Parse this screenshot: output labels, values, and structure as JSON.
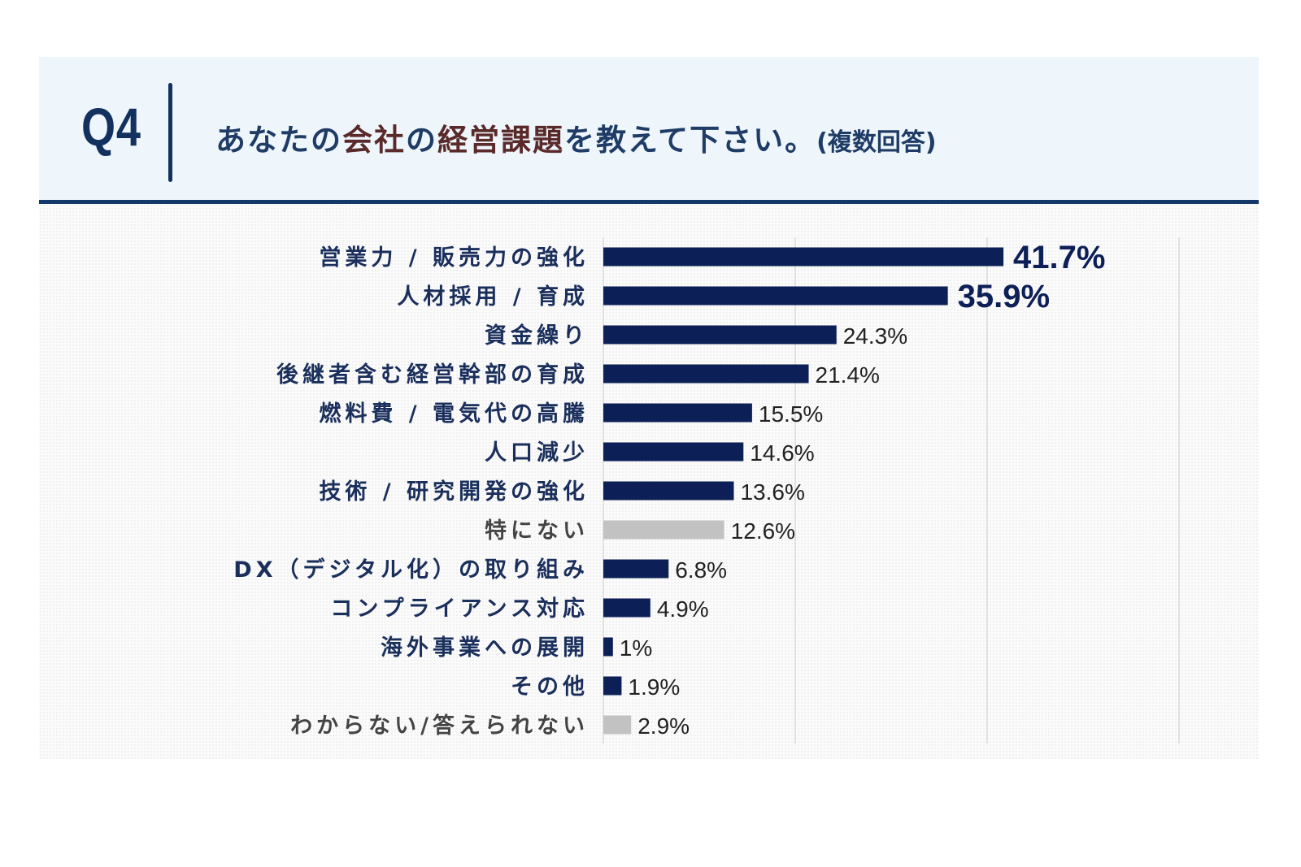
{
  "header": {
    "q_number": "Q4",
    "title_parts": [
      "あなたの",
      "会社",
      "の",
      "経営課題",
      "を教えて下さい。"
    ],
    "note": "(複数回答)"
  },
  "colors": {
    "bar": "#0c1f57",
    "bar_muted": "#c2c2c2",
    "label": "#1a2f5c",
    "label_muted": "#444444",
    "title_highlight": "#5a2a2b"
  },
  "chart_data": {
    "type": "bar",
    "orientation": "horizontal",
    "categories": [
      "営業力 / 販売力の強化",
      "人材採用 / 育成",
      "資金繰り",
      "後継者含む経営幹部の育成",
      "燃料費 / 電気代の高騰",
      "人口減少",
      "技術 / 研究開発の強化",
      "特にない",
      "DX（デジタル化）の取り組み",
      "コンプライアンス対応",
      "海外事業への展開",
      "その他",
      "わからない/答えられない"
    ],
    "values": [
      41.7,
      35.9,
      24.3,
      21.4,
      15.5,
      14.6,
      13.6,
      12.6,
      6.8,
      4.9,
      1,
      1.9,
      2.9
    ],
    "value_labels": [
      "41.7%",
      "35.9%",
      "24.3%",
      "21.4%",
      "15.5%",
      "14.6%",
      "13.6%",
      "12.6%",
      "6.8%",
      "4.9%",
      "1%",
      "1.9%",
      "2.9%"
    ],
    "muted_categories": [
      "特にない",
      "わからない/答えられない"
    ],
    "emphasized_categories": [
      "営業力 / 販売力の強化",
      "人材採用 / 育成"
    ],
    "unit": "%",
    "xlim": [
      0,
      60
    ],
    "gridlines": [
      20,
      40,
      60
    ],
    "grid": true,
    "legend": "none"
  }
}
